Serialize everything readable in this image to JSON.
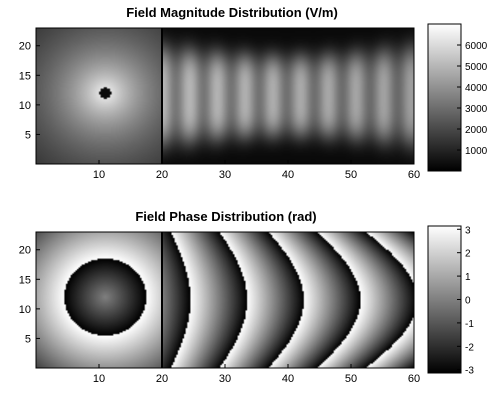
{
  "chart_data": [
    {
      "type": "heatmap",
      "title": "Field Magnitude Distribution (V/m)",
      "xlim": [
        0,
        60
      ],
      "ylim": [
        0,
        23
      ],
      "x_ticks": [
        "10",
        "20",
        "30",
        "40",
        "50",
        "60"
      ],
      "y_ticks": [
        "5",
        "10",
        "15",
        "20"
      ],
      "x_tick_values": [
        10,
        20,
        30,
        40,
        50,
        60
      ],
      "y_tick_values": [
        5,
        10,
        15,
        20
      ],
      "colormap": "gray",
      "clim": [
        0,
        7000
      ],
      "colorbar_ticks": [
        "1000",
        "2000",
        "3000",
        "4000",
        "5000",
        "6000"
      ],
      "colorbar_tick_values": [
        1000,
        2000,
        3000,
        4000,
        5000,
        6000
      ],
      "source_x": 11,
      "source_y": 12,
      "boundary_x": 20,
      "max_value": 6800
    },
    {
      "type": "heatmap",
      "title": "Field Phase Distribution (rad)",
      "xlim": [
        0,
        60
      ],
      "ylim": [
        0,
        23
      ],
      "x_ticks": [
        "10",
        "20",
        "30",
        "40",
        "50",
        "60"
      ],
      "y_ticks": [
        "5",
        "10",
        "15",
        "20"
      ],
      "x_tick_values": [
        10,
        20,
        30,
        40,
        50,
        60
      ],
      "y_tick_values": [
        5,
        10,
        15,
        20
      ],
      "colormap": "gray",
      "clim": [
        -3.14,
        3.14
      ],
      "colorbar_ticks": [
        "3",
        "2",
        "1",
        "0",
        "-1",
        "-2",
        "-3"
      ],
      "colorbar_tick_values": [
        3,
        2,
        1,
        0,
        -1,
        -2,
        -3
      ],
      "boundary_x": 20
    }
  ]
}
